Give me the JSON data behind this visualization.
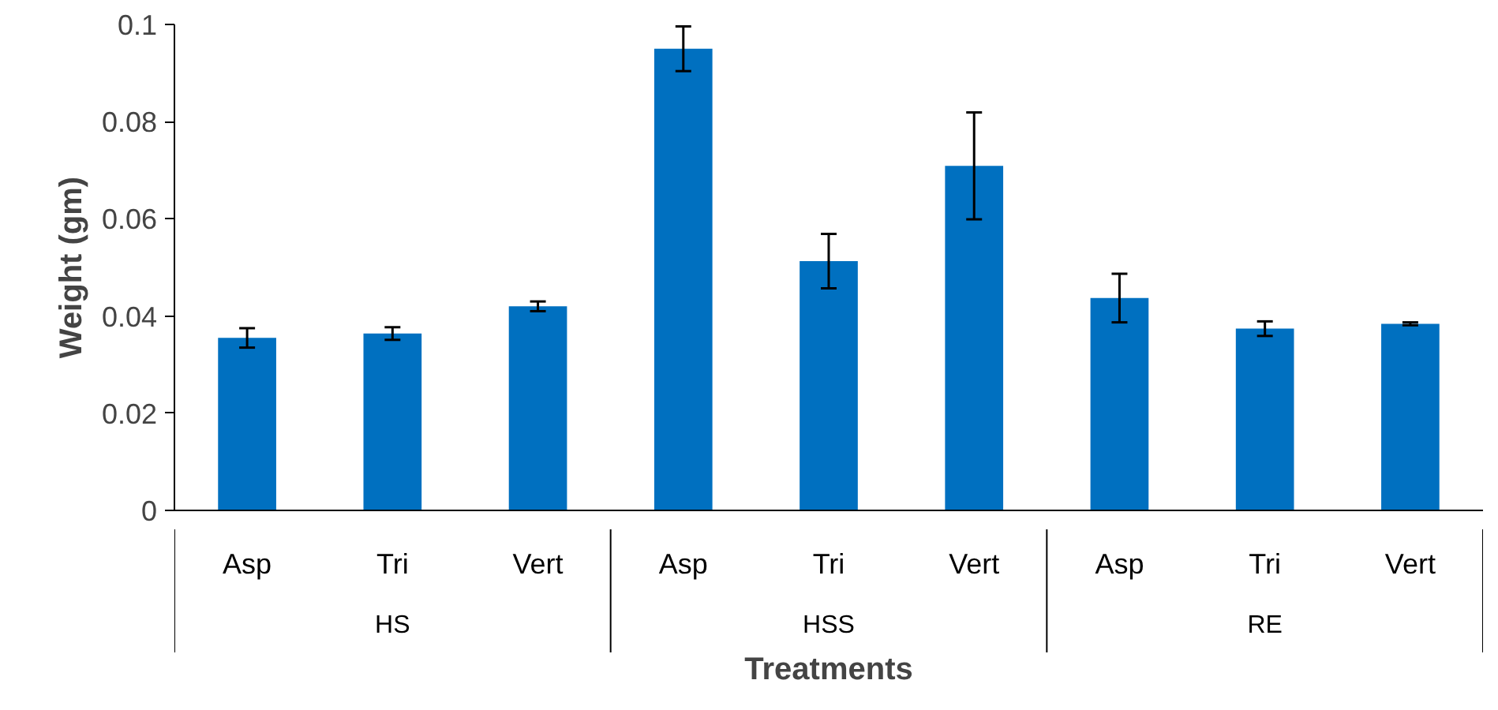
{
  "chart_data": {
    "type": "bar",
    "xlabel": "Treatments",
    "ylabel": "Weight (gm)",
    "categories": [
      "Asp",
      "Tri",
      "Vert",
      "Asp",
      "Tri",
      "Vert",
      "Asp",
      "Tri",
      "Vert"
    ],
    "values": [
      0.0355,
      0.0364,
      0.042,
      0.095,
      0.0513,
      0.0709,
      0.0437,
      0.0374,
      0.0384
    ],
    "errors": [
      0.002,
      0.0013,
      0.001,
      0.0046,
      0.0056,
      0.011,
      0.005,
      0.0015,
      0.0003
    ],
    "color": "#0070c0",
    "ylim": [
      0,
      0.1
    ],
    "yticks": [
      0,
      0.02,
      0.04,
      0.06,
      0.08,
      0.1
    ],
    "grid": false,
    "annotations": [
      "HS",
      "HSS",
      "RE"
    ]
  }
}
